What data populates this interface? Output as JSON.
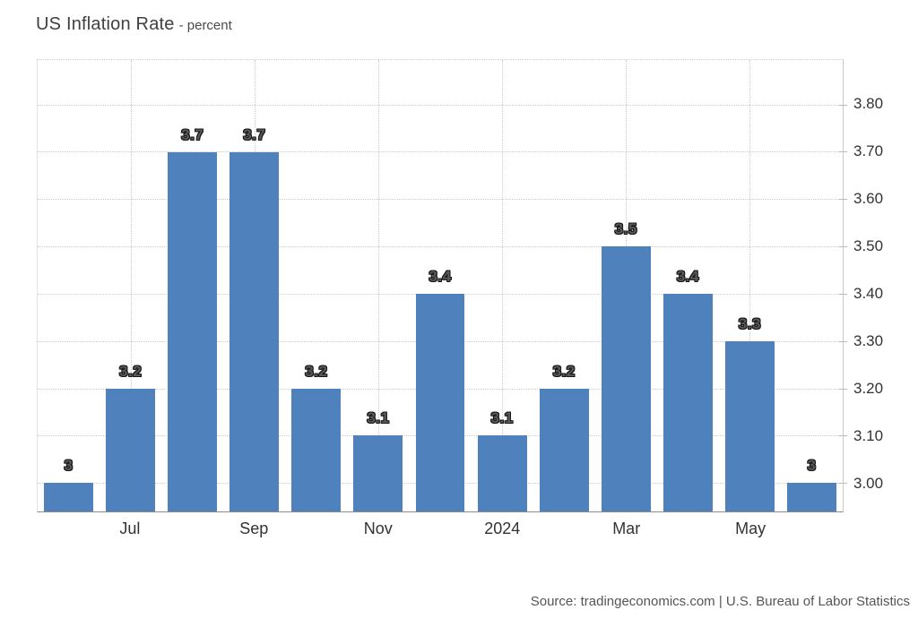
{
  "title": {
    "text": "US Inflation Rate",
    "subtitle": "- percent"
  },
  "footer": {
    "source": "Source: tradingeconomics.com | U.S. Bureau of Labor Statistics"
  },
  "chart_data": {
    "type": "bar",
    "title": "US Inflation Rate",
    "subtitle": "- percent",
    "ylabel": "percent",
    "values": [
      3,
      3.2,
      3.7,
      3.7,
      3.2,
      3.1,
      3.4,
      3.1,
      3.2,
      3.5,
      3.4,
      3.3,
      3
    ],
    "value_labels": [
      "3",
      "3.2",
      "3.7",
      "3.7",
      "3.2",
      "3.1",
      "3.4",
      "3.1",
      "3.2",
      "3.5",
      "3.4",
      "3.3",
      "3"
    ],
    "x_ticks": [
      {
        "bar_index": 1,
        "label": "Jul"
      },
      {
        "bar_index": 3,
        "label": "Sep"
      },
      {
        "bar_index": 5,
        "label": "Nov"
      },
      {
        "bar_index": 7,
        "label": "2024"
      },
      {
        "bar_index": 9,
        "label": "Mar"
      },
      {
        "bar_index": 11,
        "label": "May"
      }
    ],
    "y_ticks": [
      {
        "value": 3.0,
        "label": "3.00"
      },
      {
        "value": 3.1,
        "label": "3.10"
      },
      {
        "value": 3.2,
        "label": "3.20"
      },
      {
        "value": 3.3,
        "label": "3.30"
      },
      {
        "value": 3.4,
        "label": "3.40"
      },
      {
        "value": 3.5,
        "label": "3.50"
      },
      {
        "value": 3.6,
        "label": "3.60"
      },
      {
        "value": 3.7,
        "label": "3.70"
      },
      {
        "value": 3.8,
        "label": "3.80"
      }
    ],
    "ylim": [
      2.94,
      3.894
    ],
    "grid": "dotted",
    "legend": "none",
    "bar_color": "#4f82bd",
    "label_outline_color": "#171717"
  }
}
